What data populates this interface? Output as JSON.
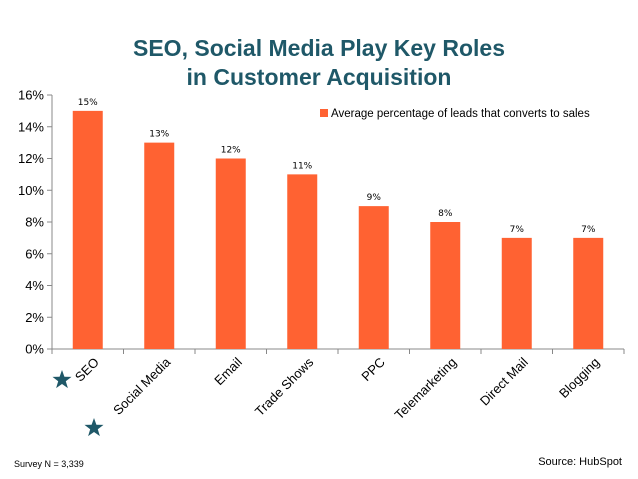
{
  "title_line1": "SEO, Social Media Play Key Roles",
  "title_line2": "in Customer Acquisition",
  "footnote_left": "Survey N = 3,339",
  "footnote_right": "Source: HubSpot",
  "bar_color": "#ff6232",
  "title_color": "#1f5868",
  "star_color": "#1f5868",
  "highlighted_categories": [
    "SEO",
    "Social Media"
  ],
  "chart_data": {
    "type": "bar",
    "categories": [
      "SEO",
      "Social Media",
      "Email",
      "Trade Shows",
      "PPC",
      "Telemarketing",
      "Direct Mail",
      "Blogging"
    ],
    "series": [
      {
        "name": "Average percentage of leads that converts to sales",
        "values": [
          15,
          13,
          12,
          11,
          9,
          8,
          7,
          7
        ]
      }
    ],
    "data_labels": [
      "15%",
      "13%",
      "12%",
      "11%",
      "9%",
      "8%",
      "7%",
      "7%"
    ],
    "yticks": [
      0,
      2,
      4,
      6,
      8,
      10,
      12,
      14,
      16
    ],
    "ytick_labels": [
      "0%",
      "2%",
      "4%",
      "6%",
      "8%",
      "10%",
      "12%",
      "14%",
      "16%"
    ],
    "ylim": [
      0,
      16
    ],
    "xlabel": "",
    "ylabel": "",
    "legend_position": "top-right",
    "grid": false
  }
}
